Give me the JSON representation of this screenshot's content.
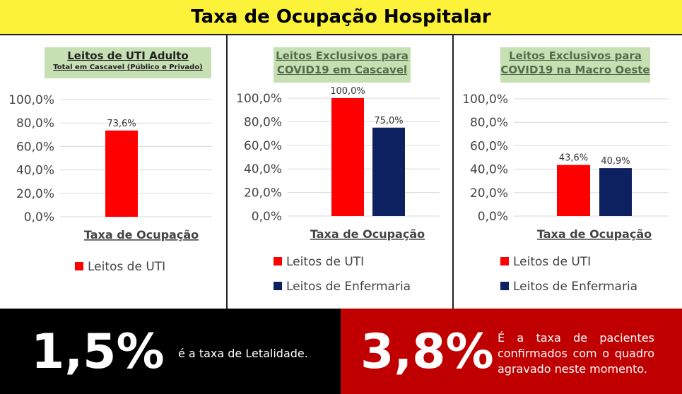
{
  "header": {
    "title": "Taxa de Ocupação Hospitalar"
  },
  "colors": {
    "header_bg": "#fdf23a",
    "title_box": "#c6e0b4",
    "series_uti": "#ff0000",
    "series_enf": "#0d2060",
    "stat_left_bg": "#000000",
    "stat_right_bg": "#c00000"
  },
  "panels": [
    {
      "title_line1": "Leitos de UTI Adulto",
      "title_line2": "Total em Cascavel (Público e Privado)"
    },
    {
      "title_line1": "Leitos Exclusivos para",
      "title_line2": "COVID19 em Cascavel"
    },
    {
      "title_line1": "Leitos Exclusivos para",
      "title_line2": "COVID19 na Macro Oeste"
    }
  ],
  "chart_data": [
    {
      "type": "bar",
      "categories": [
        "Taxa de Ocupação"
      ],
      "series": [
        {
          "name": "Leitos de UTI",
          "values": [
            73.6
          ],
          "label": "73,6%"
        }
      ],
      "xlabel": "Taxa de Ocupação",
      "ylim": [
        0,
        100
      ],
      "yticks": [
        "0,0%",
        "20,0%",
        "40,0%",
        "60,0%",
        "80,0%",
        "100,0%"
      ],
      "grid": true,
      "legend": "bottom"
    },
    {
      "type": "bar",
      "categories": [
        "Taxa de Ocupação"
      ],
      "series": [
        {
          "name": "Leitos de UTI",
          "values": [
            100.0
          ],
          "label": "100,0%"
        },
        {
          "name": "Leitos de Enfermaria",
          "values": [
            75.0
          ],
          "label": "75,0%"
        }
      ],
      "xlabel": "Taxa de Ocupação",
      "ylim": [
        0,
        100
      ],
      "yticks": [
        "0,0%",
        "20,0%",
        "40,0%",
        "60,0%",
        "80,0%",
        "100,0%"
      ],
      "grid": true,
      "legend": "bottom"
    },
    {
      "type": "bar",
      "categories": [
        "Taxa de Ocupação"
      ],
      "series": [
        {
          "name": "Leitos de UTI",
          "values": [
            43.6
          ],
          "label": "43,6%"
        },
        {
          "name": "Leitos de Enfermaria",
          "values": [
            40.9
          ],
          "label": "40,9%"
        }
      ],
      "xlabel": "Taxa de Ocupação",
      "ylim": [
        0,
        100
      ],
      "yticks": [
        "0,0%",
        "20,0%",
        "40,0%",
        "60,0%",
        "80,0%",
        "100,0%"
      ],
      "grid": true,
      "legend": "bottom"
    }
  ],
  "stats": {
    "left": {
      "value": "1,5%",
      "text": "é a taxa de Letalidade."
    },
    "right": {
      "value": "3,8%",
      "text": "É a taxa de pacientes confirmados com o quadro agravado neste momento."
    }
  }
}
